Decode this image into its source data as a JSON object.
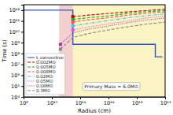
{
  "chart_data": {
    "type": "line",
    "x_label": "Radius (cm)",
    "y_label": "Time (s)",
    "log": true,
    "grid": false,
    "legend": "lower left",
    "xlim": [
      1000000000.0,
      100000000000000.0
    ],
    "ylim": [
      10000.0,
      3162277660168.379
    ],
    "xticks": [
      {
        "value": 1000000000.0,
        "label": "10⁹"
      },
      {
        "value": 10000000000.0,
        "label": "10¹⁰"
      },
      {
        "value": 100000000000.0,
        "label": "10¹¹"
      },
      {
        "value": 1000000000000.0,
        "label": "10¹²"
      },
      {
        "value": 10000000000000.0,
        "label": "10¹³"
      },
      {
        "value": 100000000000000.0,
        "label": "10¹⁴"
      }
    ],
    "yticks": [
      {
        "value": 10000.0,
        "label": "10⁴"
      },
      {
        "value": 100000.0,
        "label": "10⁵"
      },
      {
        "value": 1000000.0,
        "label": "10⁶"
      },
      {
        "value": 10000000.0,
        "label": "10⁷"
      },
      {
        "value": 100000000.0,
        "label": "10⁸"
      },
      {
        "value": 1000000000.0,
        "label": "10⁹"
      },
      {
        "value": 10000000000.0,
        "label": "10¹⁰"
      },
      {
        "value": 100000000000.0,
        "label": "10¹¹"
      },
      {
        "value": 1000000000000.0,
        "label": "10¹²"
      }
    ],
    "regions": [
      {
        "x": [
          18000000000.0,
          55000000000.0
        ],
        "color": "#e8a0a0"
      },
      {
        "x": [
          55000000000.0,
          100000000000000.0
        ],
        "color": "#f5e888"
      }
    ],
    "series": [
      {
        "name": "t_convective",
        "color": "#3355bb",
        "line_style": "solid",
        "x": [
          1000000000.0,
          18000000000.0,
          18000000000.0,
          55000000000.0,
          55000000000.0,
          45000000000000.0,
          45000000000000.0,
          80000000000000.0
        ],
        "values": [
          1000000000000.0,
          1000000000000.0,
          1000000000000.0,
          1000000000000.0,
          700000000.0,
          700000000.0,
          50000000.0,
          50000000.0
        ]
      },
      {
        "name": "0.002M⊙",
        "color": "#bb0000",
        "line_style": "dashed",
        "marker": "square",
        "x": [
          55000000000.0,
          200000000000.0,
          1000000000000.0,
          5000000000000.0,
          20000000000000.0,
          100000000000000.0
        ],
        "values": [
          250000000000.0,
          350000000000.0,
          500000000000.0,
          700000000000.0,
          900000000000.0,
          1200000000000.0
        ],
        "marker_x": 55000000000.0,
        "marker_y": 250000000000.0
      },
      {
        "name": "0.005M⊙",
        "color": "#22aa22",
        "line_style": "dashed",
        "marker": "square",
        "x": [
          55000000000.0,
          200000000000.0,
          1000000000000.0,
          5000000000000.0,
          20000000000000.0,
          100000000000000.0
        ],
        "values": [
          140000000000.0,
          200000000000.0,
          300000000000.0,
          500000000000.0,
          700000000000.0,
          900000000000.0
        ],
        "marker_x": 55000000000.0,
        "marker_y": 140000000000.0
      },
      {
        "name": "0.008M⊙",
        "color": "#ff5555",
        "line_style": "dashed",
        "marker": "square",
        "x": [
          55000000000.0,
          200000000000.0,
          1000000000000.0,
          5000000000000.0,
          20000000000000.0,
          100000000000000.0
        ],
        "values": [
          80000000000.0,
          130000000000.0,
          200000000000.0,
          350000000000.0,
          500000000000.0,
          700000000000.0
        ],
        "marker_x": 55000000000.0,
        "marker_y": 80000000000.0
      },
      {
        "name": "0.02M⊙",
        "color": "#55bbee",
        "line_style": "dashdot",
        "marker": "square",
        "x": [
          55000000000.0,
          200000000000.0,
          1000000000000.0,
          5000000000000.0,
          20000000000000.0,
          100000000000000.0
        ],
        "values": [
          35000000000.0,
          60000000000.0,
          110000000000.0,
          200000000000.0,
          300000000000.0,
          450000000000.0
        ],
        "marker_x": 55000000000.0,
        "marker_y": 35000000000.0
      },
      {
        "name": "0.05M⊙",
        "color": "#dd55dd",
        "line_style": "dotted",
        "marker": "square",
        "x": [
          55000000000.0,
          200000000000.0,
          1000000000000.0,
          5000000000000.0,
          20000000000000.0,
          100000000000000.0
        ],
        "values": [
          15000000000.0,
          28000000000.0,
          55000000000.0,
          100000000000.0,
          180000000000.0,
          280000000000.0
        ],
        "marker_x": 55000000000.0,
        "marker_y": 15000000000.0
      },
      {
        "name": "0.08M⊙",
        "color": "#aa33aa",
        "line_style": "dotted",
        "marker": "square",
        "x": [
          20000000000.0,
          55000000000.0,
          200000000000.0,
          1000000000000.0,
          5000000000000.0,
          20000000000000.0,
          100000000000000.0
        ],
        "values": [
          700000000.0,
          8000000000.0,
          18000000000.0,
          35000000000.0,
          70000000000.0,
          120000000000.0,
          190000000000.0
        ],
        "marker_x": 20000000000.0,
        "marker_y": 700000000.0
      },
      {
        "name": "0.3M⊙",
        "color": "#888888",
        "line_style": "dashed",
        "marker": "square",
        "x": [
          20000000000.0,
          55000000000.0,
          200000000000.0,
          1000000000000.0,
          5000000000000.0,
          20000000000000.0,
          100000000000000.0
        ],
        "values": [
          250000000.0,
          3000000000.0,
          7000000000.0,
          15000000000.0,
          30000000000.0,
          50000000000.0,
          80000000000.0
        ],
        "marker_x": 20000000000.0,
        "marker_y": 250000000.0
      }
    ],
    "annotations": [
      {
        "text": "Primary Mass = 6.0M⊙"
      }
    ]
  }
}
